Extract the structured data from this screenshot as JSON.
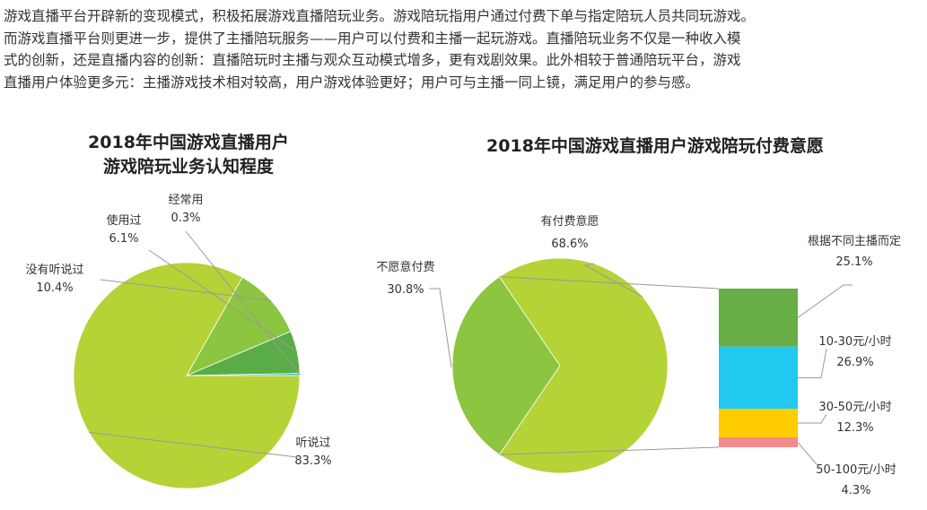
{
  "intro": {
    "lines": [
      "游戏直播平台开辟新的变现模式，积极拓展游戏直播陪玩业务。游戏陪玩指用户通过付费下单与指定陪玩人员共同玩游戏。",
      "而游戏直播平台则更进一步，提供了主播陪玩服务——用户可以付费和主播一起玩游戏。直播陪玩业务不仅是一种收入模",
      "式的创新，还是直播内容的创新：直播陪玩时主播与观众互动模式增多，更有戏剧效果。此外相较于普通陪玩平台，游戏",
      "直播用户体验更多元：主播游戏技术相对较高，用户游戏体验更好；用户可与主播一同上镜，满足用户的参与感。"
    ]
  },
  "chart_data": [
    {
      "type": "pie",
      "title_lines": [
        "2018年中国游戏直播用户",
        "游戏陪玩业务认知程度"
      ],
      "slices": [
        {
          "label": "听说过",
          "value": 83.3,
          "display": "83.3%",
          "color": "#b5d236"
        },
        {
          "label": "没有听说过",
          "value": 10.4,
          "display": "10.4%",
          "color": "#8cc540"
        },
        {
          "label": "使用过",
          "value": 6.1,
          "display": "6.1%",
          "color": "#5aad46"
        },
        {
          "label": "经常用",
          "value": 0.3,
          "display": "0.3%",
          "color": "#2fc2c8"
        }
      ]
    },
    {
      "type": "pie",
      "title": "2018年中国游戏直播用户游戏陪玩付费意愿",
      "slices": [
        {
          "label": "有付费意愿",
          "value": 68.6,
          "display": "68.6%",
          "color": "#b5d236"
        },
        {
          "label": "不愿意付费",
          "value": 30.8,
          "display": "30.8%",
          "color": "#8cc540"
        }
      ],
      "breakdown": {
        "of": "有付费意愿",
        "items": [
          {
            "label": "根据不同主播而定",
            "value": 25.1,
            "display": "25.1%",
            "color": "#66ae45"
          },
          {
            "label": "10-30元/小时",
            "value": 26.9,
            "display": "26.9%",
            "color": "#21c8f0"
          },
          {
            "label": "30-50元/小时",
            "value": 12.3,
            "display": "12.3%",
            "color": "#ffcc00"
          },
          {
            "label": "50-100元/小时",
            "value": 4.3,
            "display": "4.3%",
            "color": "#f28b8b"
          }
        ]
      }
    }
  ]
}
